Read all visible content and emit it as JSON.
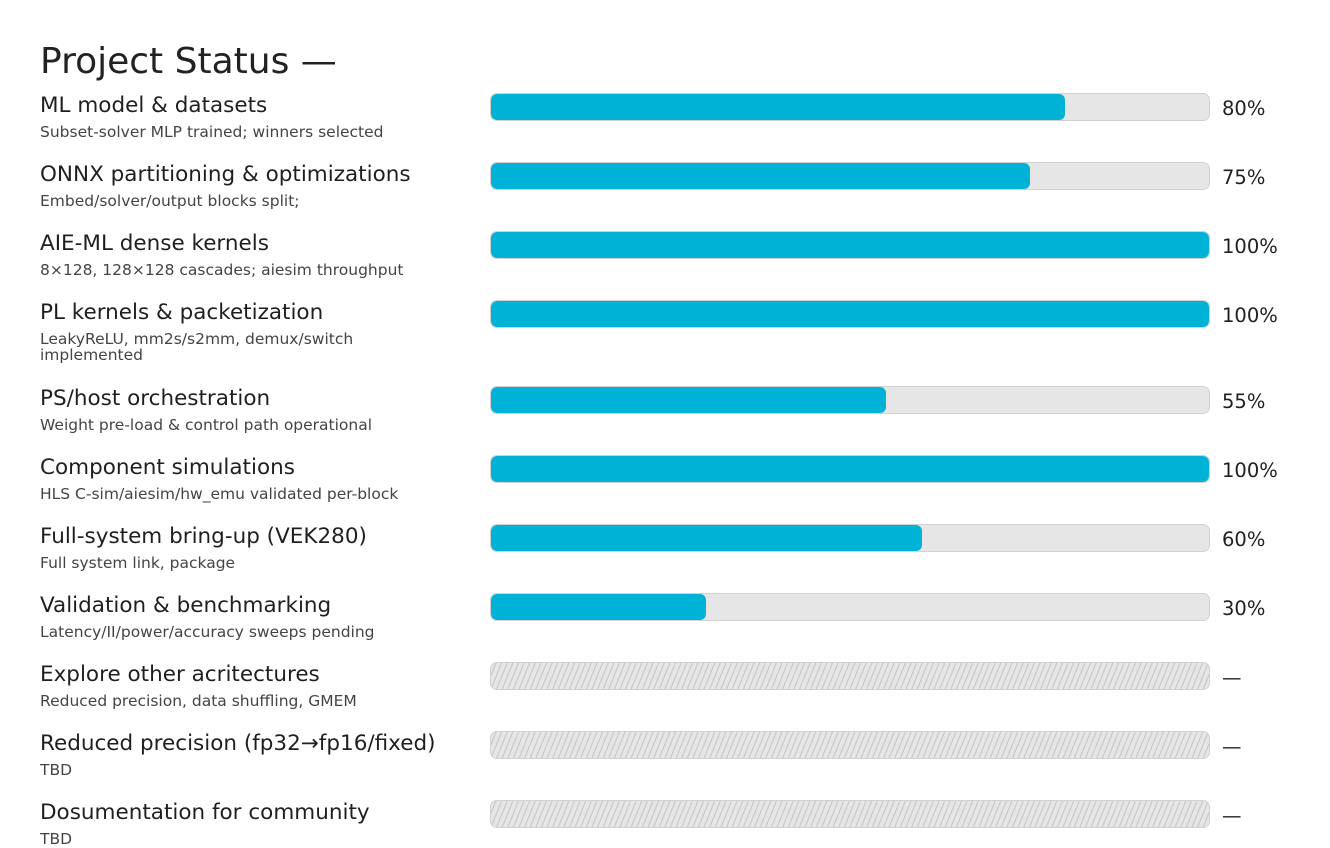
{
  "chart_data": {
    "type": "bar",
    "orientation": "horizontal",
    "title": "Project Status —",
    "xlim": [
      0,
      100
    ],
    "grid": false,
    "bar_color": "#00b3d6",
    "track_color": "#e6e6e6",
    "items": [
      {
        "label": "ML model & datasets",
        "description": "Subset-solver MLP trained; winners selected",
        "value": 80,
        "value_label": "80%"
      },
      {
        "label": "ONNX partitioning & optimizations",
        "description": "Embed/solver/output blocks split;",
        "value": 75,
        "value_label": "75%"
      },
      {
        "label": "AIE-ML dense kernels",
        "description": "8×128, 128×128 cascades; aiesim throughput",
        "value": 100,
        "value_label": "100%"
      },
      {
        "label": "PL kernels & packetization",
        "description": "LeakyReLU, mm2s/s2mm, demux/switch implemented",
        "value": 100,
        "value_label": "100%"
      },
      {
        "label": "PS/host orchestration",
        "description": "Weight pre-load & control path operational",
        "value": 55,
        "value_label": "55%"
      },
      {
        "label": "Component simulations",
        "description": "HLS C-sim/aiesim/hw_emu validated per-block",
        "value": 100,
        "value_label": "100%"
      },
      {
        "label": "Full-system bring-up (VEK280)",
        "description": "Full system link, package",
        "value": 60,
        "value_label": "60%"
      },
      {
        "label": "Validation & benchmarking",
        "description": "Latency/II/power/accuracy sweeps pending",
        "value": 30,
        "value_label": "30%"
      },
      {
        "label": "Explore other acritectures",
        "description": "Reduced precision, data shuffling, GMEM",
        "value": null,
        "value_label": "—"
      },
      {
        "label": "Reduced precision (fp32→fp16/fixed)",
        "description": "TBD",
        "value": null,
        "value_label": "—"
      },
      {
        "label": "Dosumentation for community",
        "description": "TBD",
        "value": null,
        "value_label": "—"
      }
    ]
  }
}
